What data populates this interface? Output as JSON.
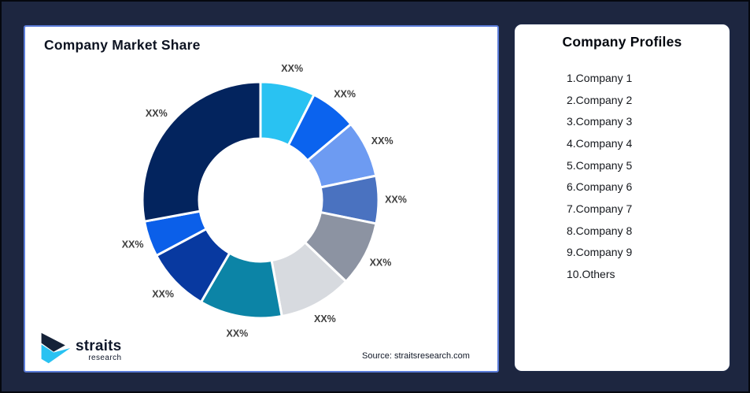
{
  "frame": {
    "background": "#1d2640",
    "border": "#05080f"
  },
  "left_card": {
    "title": "Company Market Share",
    "border_color": "#5b7cd9",
    "source_note": "Source: straitsresearch.com",
    "logo": {
      "name": "straits",
      "sub": "research",
      "navy": "#152238",
      "cyan": "#29c2f2"
    }
  },
  "right_card": {
    "title": "Company Profiles",
    "items": [
      "1.Company 1",
      "2.Company 2",
      "3.Company 3",
      "4.Company 4",
      "5.Company 5",
      "6.Company 6",
      "7.Company 7",
      "8.Company 8",
      "9.Company 9",
      "10.Others"
    ]
  },
  "chart_data": {
    "type": "pie",
    "title": "Company Market Share",
    "donut": true,
    "start_angle_deg": 0,
    "direction": "clockwise",
    "inner_radius_ratio": 0.52,
    "label_color": "#3e3e3e",
    "segments": [
      {
        "label": "XX%",
        "value": 7.5,
        "color": "#29c2f2"
      },
      {
        "label": "XX%",
        "value": 6.4,
        "color": "#0b63ee"
      },
      {
        "label": "XX%",
        "value": 7.8,
        "color": "#6d9bf2"
      },
      {
        "label": "XX%",
        "value": 6.5,
        "color": "#4a72c0"
      },
      {
        "label": "XX%",
        "value": 8.9,
        "color": "#8c93a2"
      },
      {
        "label": "XX%",
        "value": 10.0,
        "color": "#d7dadf"
      },
      {
        "label": "XX%",
        "value": 11.3,
        "color": "#0c84a6"
      },
      {
        "label": "XX%",
        "value": 8.8,
        "color": "#0839a0"
      },
      {
        "label": "XX%",
        "value": 4.9,
        "color": "#0b5fe9"
      },
      {
        "label": "XX%",
        "value": 27.9,
        "color": "#03245e"
      }
    ]
  }
}
